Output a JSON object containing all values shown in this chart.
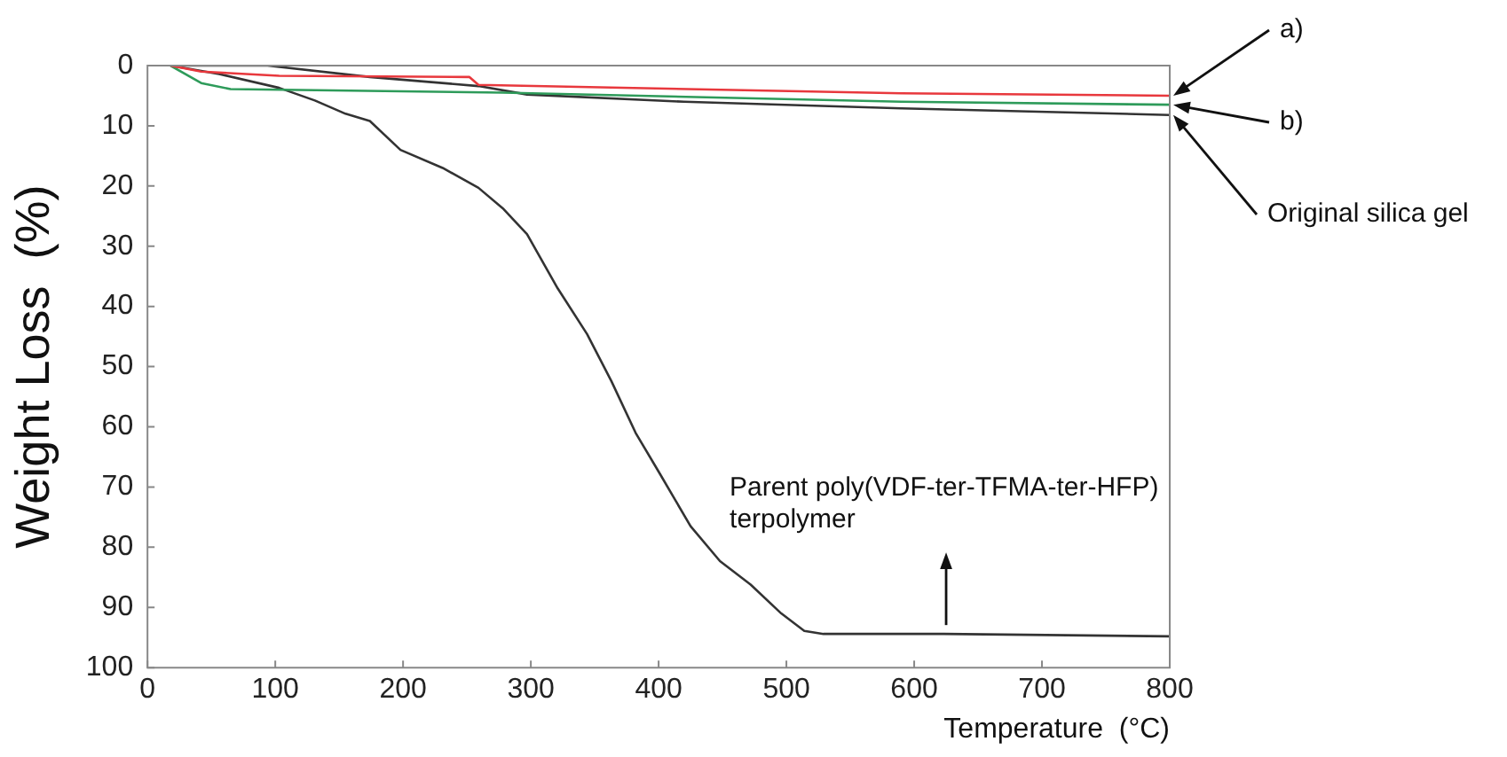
{
  "chart_data": {
    "type": "line",
    "xlabel": "Temperature  (°C)",
    "ylabel": "Weight Loss  (%)",
    "xlim": [
      0,
      800
    ],
    "ylim": [
      100,
      0
    ],
    "xticks": [
      0,
      100,
      200,
      300,
      400,
      500,
      600,
      700,
      800
    ],
    "yticks": [
      0,
      10,
      20,
      30,
      40,
      50,
      60,
      70,
      80,
      90,
      100
    ],
    "grid": false,
    "legend": false,
    "marker": "none",
    "line_style": "solid",
    "series": [
      {
        "color": "#e8383d",
        "x": [
          18,
          42,
          103,
          252,
          259,
          590,
          800
        ],
        "values": [
          0,
          1.0,
          1.7,
          1.9,
          3.2,
          4.6,
          5.0
        ]
      },
      {
        "color": "#2e9b5a",
        "x": [
          18,
          42,
          65,
          278,
          590,
          800
        ],
        "values": [
          0,
          2.9,
          3.9,
          4.5,
          6.0,
          6.5
        ]
      },
      {
        "color": "#333333",
        "x": [
          18,
          94,
          174,
          259,
          297,
          420,
          590,
          800
        ],
        "values": [
          0,
          0,
          1.9,
          3.4,
          4.8,
          6.0,
          7.1,
          8.2
        ]
      },
      {
        "color": "#333333",
        "x": [
          18,
          56,
          103,
          131,
          155,
          174,
          198,
          231,
          259,
          278,
          297,
          321,
          344,
          363,
          382,
          401,
          425,
          448,
          472,
          496,
          514,
          529,
          623,
          800
        ],
        "values": [
          0,
          1.4,
          3.7,
          5.8,
          8.0,
          9.2,
          14,
          17,
          20.3,
          23.7,
          28,
          37,
          44.6,
          52.4,
          61,
          67.8,
          76.5,
          82.3,
          86.2,
          91,
          93.9,
          94.4,
          94.4,
          94.8
        ]
      }
    ],
    "annotations": [
      "a)",
      "b)",
      "Original silica gel",
      {
        "text": "Parent poly(VDF-ter-TFMA-ter-HFP)\nterpolymer",
        "x": 625,
        "y": 94.4
      }
    ]
  }
}
